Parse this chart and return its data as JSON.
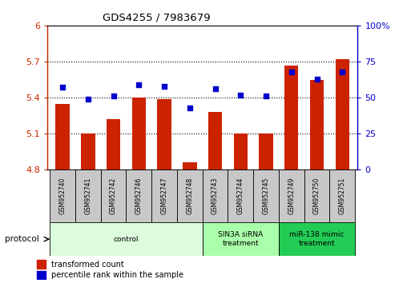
{
  "title": "GDS4255 / 7983679",
  "samples": [
    "GSM952740",
    "GSM952741",
    "GSM952742",
    "GSM952746",
    "GSM952747",
    "GSM952748",
    "GSM952743",
    "GSM952744",
    "GSM952745",
    "GSM952749",
    "GSM952750",
    "GSM952751"
  ],
  "bar_values": [
    5.35,
    5.1,
    5.22,
    5.4,
    5.39,
    4.86,
    5.28,
    5.1,
    5.1,
    5.67,
    5.55,
    5.72
  ],
  "dot_values": [
    57,
    49,
    51,
    59,
    58,
    43,
    56,
    52,
    51,
    68,
    63,
    68
  ],
  "bar_color": "#cc2200",
  "dot_color": "#0000cc",
  "ylim_left": [
    4.8,
    6.0
  ],
  "ylim_right": [
    0,
    100
  ],
  "yticks_left": [
    4.8,
    5.1,
    5.4,
    5.7,
    6.0
  ],
  "yticks_right": [
    0,
    25,
    50,
    75,
    100
  ],
  "ytick_labels_left": [
    "4.8",
    "5.1",
    "5.4",
    "5.7",
    "6"
  ],
  "ytick_labels_right": [
    "0",
    "25",
    "50",
    "75",
    "100%"
  ],
  "gridlines": [
    5.1,
    5.4,
    5.7
  ],
  "groups": [
    {
      "label": "control",
      "start": 0,
      "end": 6,
      "color": "#ddfcdd"
    },
    {
      "label": "SIN3A siRNA\ntreatment",
      "start": 6,
      "end": 9,
      "color": "#aaffaa"
    },
    {
      "label": "miR-138 mimic\ntreatment",
      "start": 9,
      "end": 12,
      "color": "#22cc55"
    }
  ],
  "protocol_label": "protocol",
  "legend_items": [
    {
      "label": "transformed count",
      "color": "#cc2200"
    },
    {
      "label": "percentile rank within the sample",
      "color": "#0000cc"
    }
  ],
  "sample_box_color": "#c8c8c8",
  "bar_bottom": 4.8,
  "bar_width": 0.55
}
